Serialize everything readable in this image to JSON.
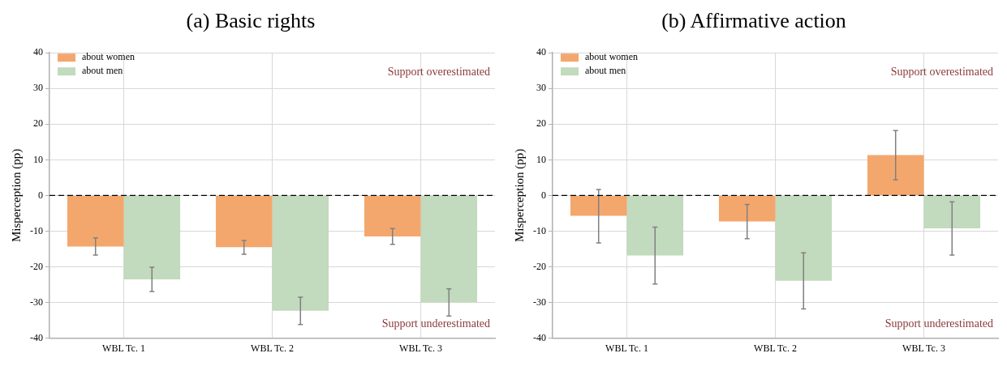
{
  "chart_data": [
    {
      "type": "bar",
      "title": "(a) Basic rights",
      "ylabel": "Misperception (pp)",
      "categories": [
        "WBL Tc. 1",
        "WBL Tc. 2",
        "WBL Tc. 3"
      ],
      "series": [
        {
          "name": "about women",
          "color": "#f4a76d",
          "values": [
            -14.3,
            -14.5,
            -11.5
          ],
          "errors": [
            [
              -16.7,
              -11.9
            ],
            [
              -16.5,
              -12.6
            ],
            [
              -13.7,
              -9.3
            ]
          ]
        },
        {
          "name": "about men",
          "color": "#c2dabd",
          "values": [
            -23.5,
            -32.3,
            -30.0
          ],
          "errors": [
            [
              -26.9,
              -20.1
            ],
            [
              -36.2,
              -28.5
            ],
            [
              -33.8,
              -26.2
            ]
          ]
        }
      ],
      "ylim": [
        -40,
        40
      ],
      "yticks": [
        -40,
        -30,
        -20,
        -10,
        0,
        10,
        20,
        30,
        40
      ],
      "grid": true,
      "legend": "top left",
      "ref_lines": [
        {
          "axis": "y",
          "value": 0,
          "color": "#000000",
          "line_style": "dashed"
        }
      ],
      "annotations": [
        "Support overestimated",
        "Support underestimated"
      ]
    },
    {
      "type": "bar",
      "title": "(b) Affirmative action",
      "ylabel": "Misperception (pp)",
      "categories": [
        "WBL Tc. 1",
        "WBL Tc. 2",
        "WBL Tc. 3"
      ],
      "series": [
        {
          "name": "about women",
          "color": "#f4a76d",
          "values": [
            -5.7,
            -7.3,
            11.3
          ],
          "errors": [
            [
              -13.3,
              1.7
            ],
            [
              -12.1,
              -2.5
            ],
            [
              4.4,
              18.2
            ]
          ]
        },
        {
          "name": "about men",
          "color": "#c2dabd",
          "values": [
            -16.8,
            -23.9,
            -9.2
          ],
          "errors": [
            [
              -24.8,
              -8.9
            ],
            [
              -31.8,
              -16.1
            ],
            [
              -16.7,
              -1.8
            ]
          ]
        }
      ],
      "ylim": [
        -40,
        40
      ],
      "yticks": [
        -40,
        -30,
        -20,
        -10,
        0,
        10,
        20,
        30,
        40
      ],
      "grid": true,
      "legend": "top left",
      "ref_lines": [
        {
          "axis": "y",
          "value": 0,
          "color": "#000000",
          "line_style": "dashed"
        }
      ],
      "annotations": [
        "Support overestimated",
        "Support underestimated"
      ]
    }
  ]
}
